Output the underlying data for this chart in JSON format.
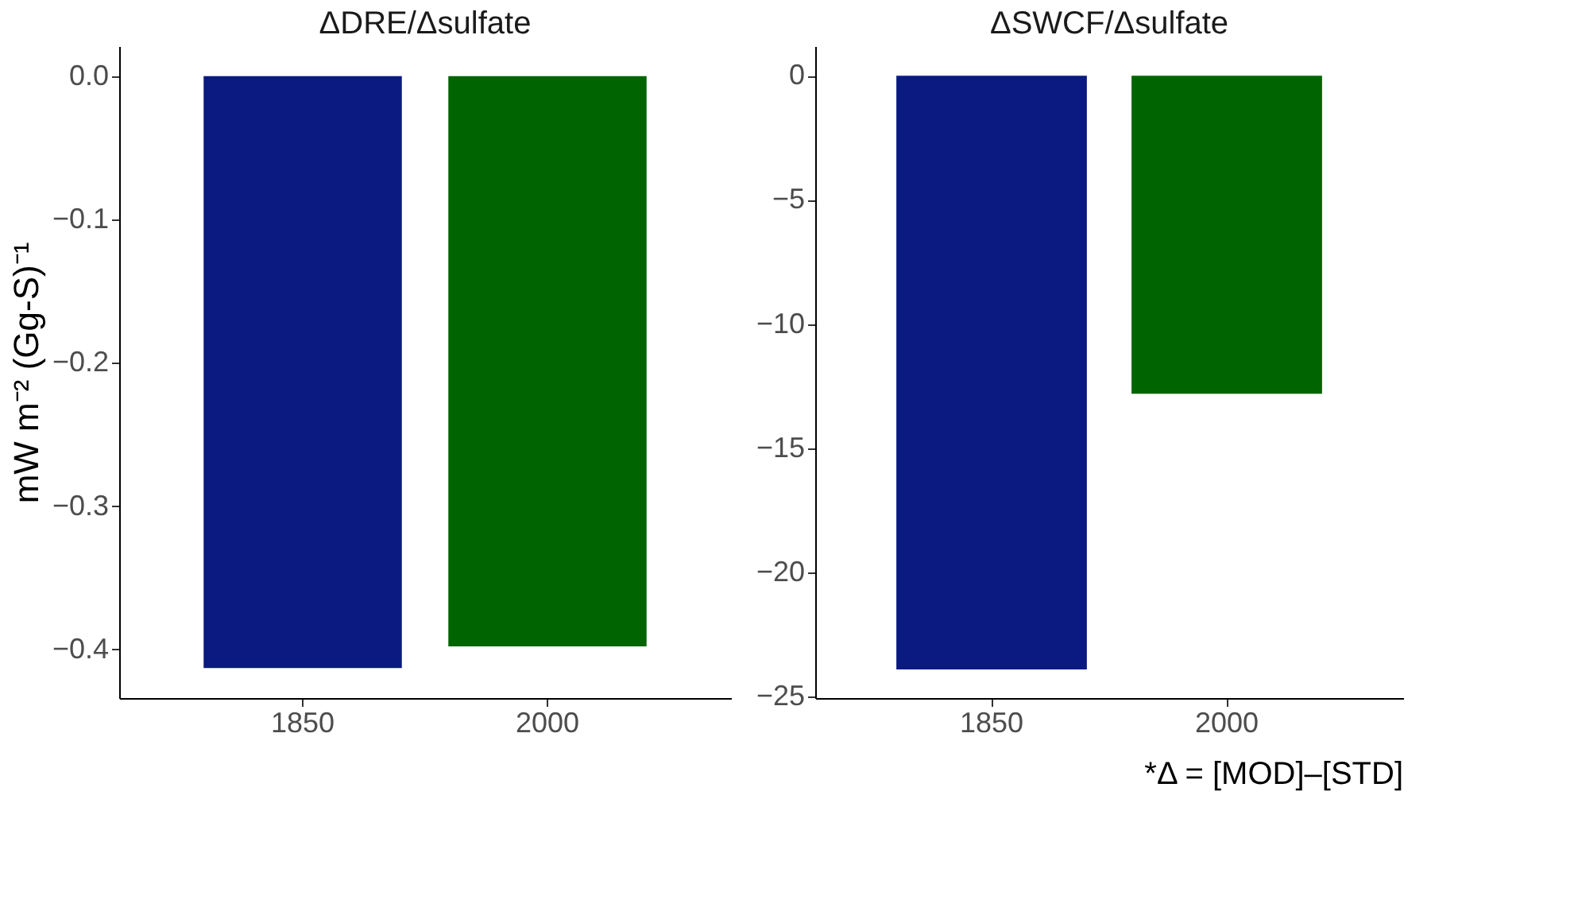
{
  "chart_data": [
    {
      "type": "bar",
      "title": "ΔDRE/Δsulfate",
      "ylabel": "mW m⁻² (Gg-S)⁻¹",
      "categories": [
        "1850",
        "2000"
      ],
      "values": [
        -0.413,
        -0.398
      ],
      "colors": [
        "#0a1a80",
        "#006400"
      ],
      "ylim": [
        -0.434,
        0.021
      ],
      "yticks": [
        {
          "value": 0,
          "label": "0.0"
        },
        -0.1,
        -0.2,
        -0.3,
        -0.4
      ],
      "grid": false
    },
    {
      "type": "bar",
      "title": "ΔSWCF/Δsulfate",
      "categories": [
        "1850",
        "2000"
      ],
      "values": [
        -23.9,
        -12.8
      ],
      "colors": [
        "#0a1a80",
        "#006400"
      ],
      "ylim": [
        -25.05,
        1.19
      ],
      "yticks": [
        0,
        -5,
        -10,
        -15,
        -20,
        -25
      ],
      "grid": false,
      "annotations": [
        "*Δ = [MOD]–[STD]"
      ]
    }
  ]
}
